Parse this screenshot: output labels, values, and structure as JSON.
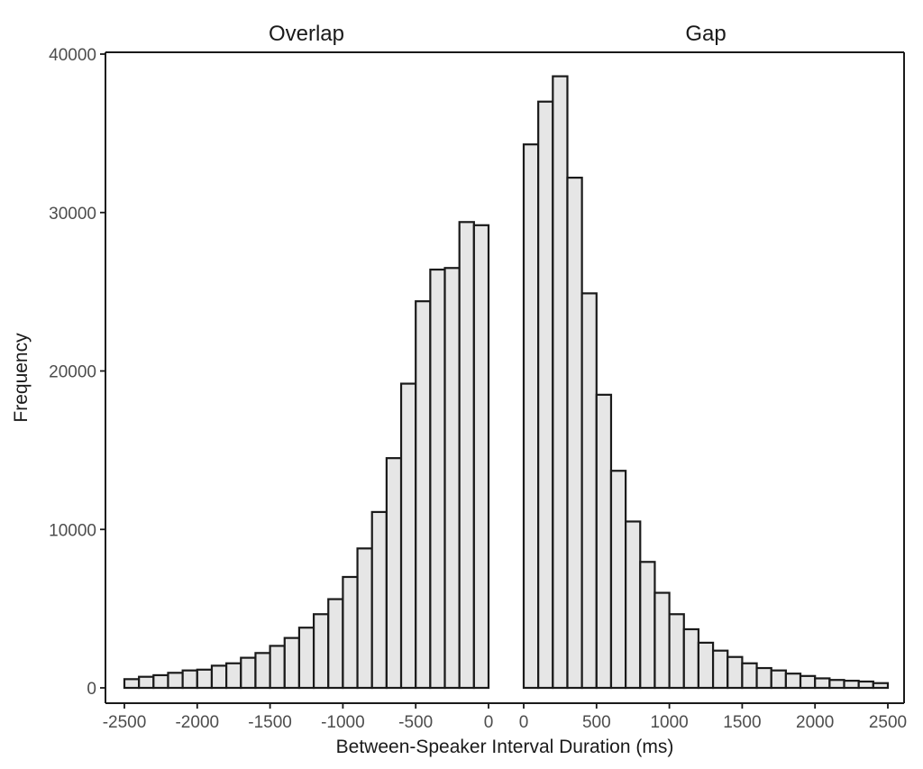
{
  "chart_data": {
    "type": "bar",
    "title": "",
    "xlabel": "Between-Speaker Interval Duration (ms)",
    "ylabel": "Frequency",
    "ylim": [
      0,
      40000
    ],
    "yticks": [
      "0",
      "10000",
      "20000",
      "30000",
      "40000"
    ],
    "grid": false,
    "bin_width": 100,
    "panels": [
      {
        "name": "Overlap",
        "xlim": [
          -2500,
          0
        ],
        "xticks": [
          "-2500",
          "-2000",
          "-1500",
          "-1000",
          "-500",
          "0"
        ],
        "bin_starts": [
          -2500,
          -2400,
          -2300,
          -2200,
          -2100,
          -2000,
          -1900,
          -1800,
          -1700,
          -1600,
          -1500,
          -1400,
          -1300,
          -1200,
          -1100,
          -1000,
          -900,
          -800,
          -700,
          -600,
          -500,
          -400,
          -300,
          -200,
          -100
        ],
        "values": [
          550,
          700,
          800,
          950,
          1100,
          1150,
          1400,
          1550,
          1900,
          2200,
          2650,
          3150,
          3800,
          4650,
          5600,
          7000,
          8800,
          11100,
          14500,
          19200,
          24400,
          26400,
          26500,
          29400,
          29200
        ]
      },
      {
        "name": "Gap",
        "xlim": [
          0,
          2500
        ],
        "xticks": [
          "0",
          "500",
          "1000",
          "1500",
          "2000",
          "2500"
        ],
        "bin_starts": [
          0,
          100,
          200,
          300,
          400,
          500,
          600,
          700,
          800,
          900,
          1000,
          1100,
          1200,
          1300,
          1400,
          1500,
          1600,
          1700,
          1800,
          1900,
          2000,
          2100,
          2200,
          2300,
          2400
        ],
        "values": [
          34300,
          37000,
          38600,
          32200,
          24900,
          18500,
          13700,
          10500,
          7950,
          6000,
          4650,
          3700,
          2850,
          2350,
          1950,
          1550,
          1250,
          1100,
          900,
          750,
          600,
          500,
          450,
          400,
          300
        ]
      }
    ]
  }
}
